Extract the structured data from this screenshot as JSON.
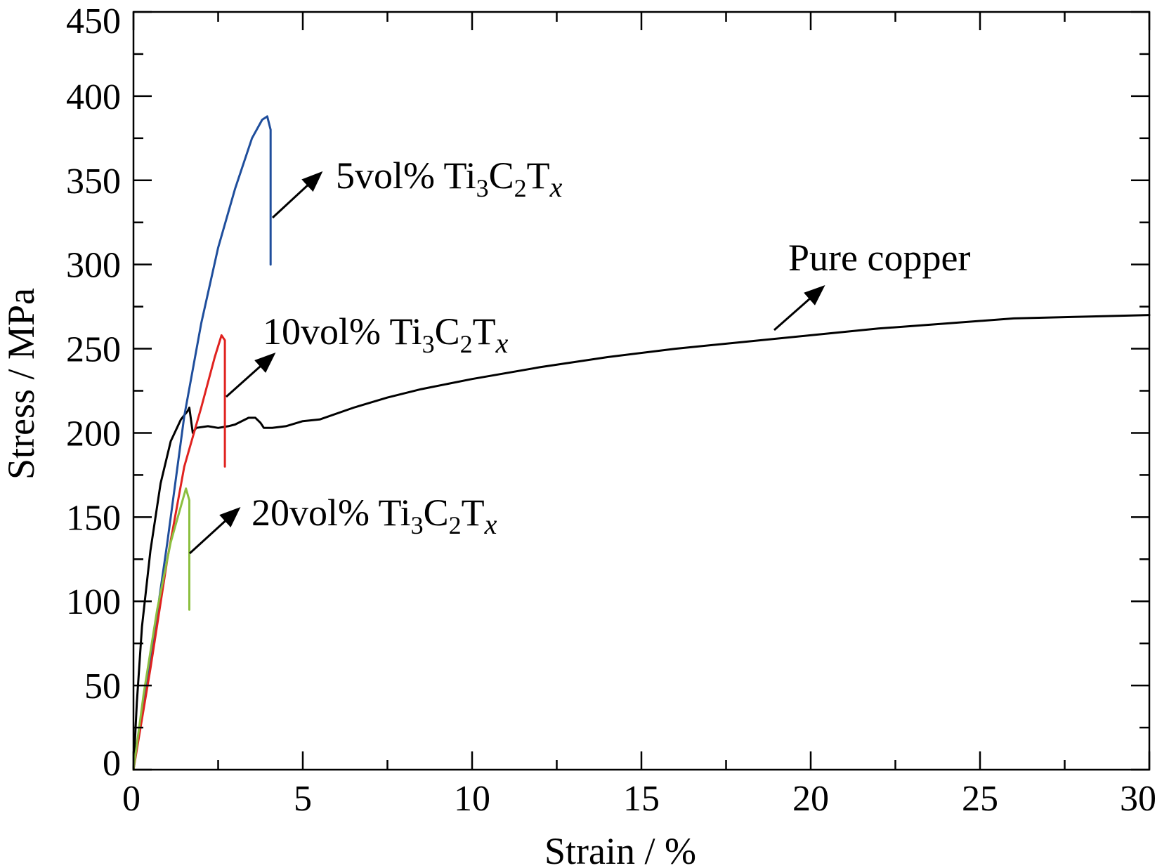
{
  "chart_data": {
    "type": "line",
    "title": "",
    "xlabel": "Strain / %",
    "ylabel": "Stress / MPa",
    "xlim": [
      0,
      30
    ],
    "ylim": [
      0,
      450
    ],
    "xticks": [
      0,
      5,
      10,
      15,
      20,
      25,
      30
    ],
    "yticks": [
      0,
      50,
      100,
      150,
      200,
      250,
      300,
      350,
      400,
      450
    ],
    "grid": false,
    "legend": "none",
    "series": [
      {
        "name": "Pure copper",
        "color": "#000000",
        "x": [
          0,
          0.1,
          0.25,
          0.5,
          0.8,
          1.1,
          1.4,
          1.6,
          1.65,
          1.75,
          1.85,
          2.2,
          2.5,
          2.8,
          3.0,
          3.4,
          3.6,
          3.75,
          3.85,
          4.1,
          4.5,
          5.0,
          5.5,
          6.5,
          7.5,
          8.5,
          10,
          12,
          14,
          16,
          18,
          20,
          22,
          24,
          26,
          28,
          30
        ],
        "y": [
          0,
          40,
          85,
          130,
          170,
          195,
          208,
          213,
          215,
          200,
          203,
          204,
          203,
          204,
          205,
          209,
          209,
          206,
          203,
          203,
          204,
          207,
          208,
          215,
          221,
          226,
          232,
          239,
          245,
          250,
          254,
          258,
          262,
          265,
          268,
          269,
          270
        ]
      },
      {
        "name": "5vol% Ti3C2Tx",
        "color": "#1f4e9c",
        "x": [
          0,
          0.5,
          1.0,
          1.5,
          2.0,
          2.5,
          3.0,
          3.5,
          3.8,
          3.95,
          4.05,
          4.05
        ],
        "y": [
          0,
          65,
          135,
          210,
          265,
          310,
          345,
          375,
          386,
          388,
          380,
          300
        ]
      },
      {
        "name": "10vol% Ti3C2Tx",
        "color": "#e0221f",
        "x": [
          0,
          0.5,
          1.0,
          1.5,
          2.0,
          2.4,
          2.6,
          2.7,
          2.7
        ],
        "y": [
          0,
          60,
          125,
          180,
          215,
          245,
          258,
          255,
          180
        ]
      },
      {
        "name": "20vol% Ti3C2Tx",
        "color": "#8cbf3f",
        "x": [
          0,
          0.3,
          0.7,
          1.1,
          1.45,
          1.55,
          1.65,
          1.65
        ],
        "y": [
          0,
          45,
          95,
          135,
          160,
          167,
          160,
          95
        ]
      }
    ],
    "annotations": [
      {
        "label_main": "5vol% Ti",
        "sub1": "3",
        "mid1": "C",
        "sub2": "2",
        "mid2": "T",
        "sub3": "x",
        "series": "5vol% Ti3C2Tx"
      },
      {
        "label_main": "10vol% Ti",
        "sub1": "3",
        "mid1": "C",
        "sub2": "2",
        "mid2": "T",
        "sub3": "x",
        "series": "10vol% Ti3C2Tx"
      },
      {
        "label_main": "20vol% Ti",
        "sub1": "3",
        "mid1": "C",
        "sub2": "2",
        "mid2": "T",
        "sub3": "x",
        "series": "20vol% Ti3C2Tx"
      },
      {
        "label_main": "Pure copper",
        "series": "Pure copper"
      }
    ]
  }
}
